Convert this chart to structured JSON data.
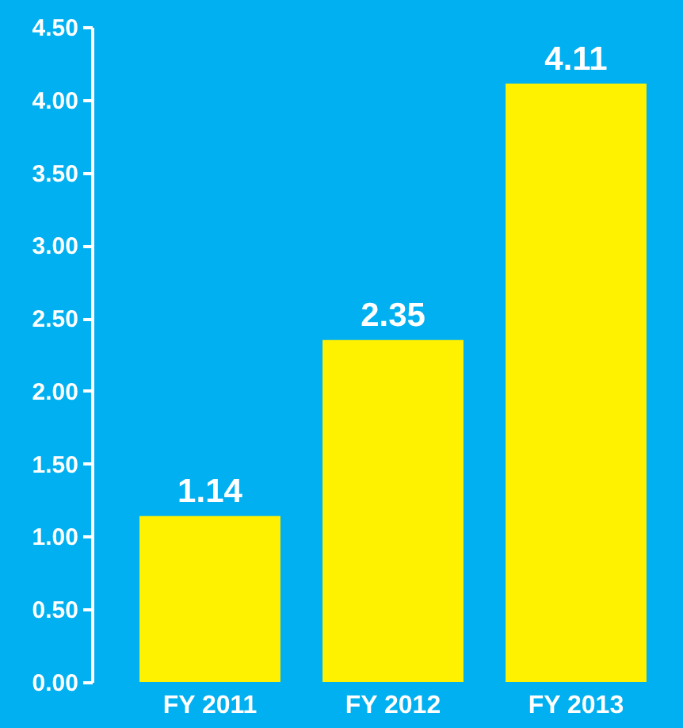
{
  "chart_data": {
    "type": "bar",
    "categories": [
      "FY 2011",
      "FY 2012",
      "FY 2013"
    ],
    "values": [
      1.14,
      2.35,
      4.11
    ],
    "color": "#fff200",
    "data_labels": true,
    "ylim": [
      0,
      4.5
    ],
    "yticks": [
      {
        "value": 0,
        "label": "0.00"
      },
      {
        "value": 0.5,
        "label": "0.50"
      },
      {
        "value": 1,
        "label": "1.00"
      },
      {
        "value": 1.5,
        "label": "1.50"
      },
      {
        "value": 2,
        "label": "2.00"
      },
      {
        "value": 2.5,
        "label": "2.50"
      },
      {
        "value": 3,
        "label": "3.00"
      },
      {
        "value": 3.5,
        "label": "3.50"
      },
      {
        "value": 4,
        "label": "4.00"
      },
      {
        "value": 4.5,
        "label": "4.50"
      }
    ],
    "grid": false
  }
}
